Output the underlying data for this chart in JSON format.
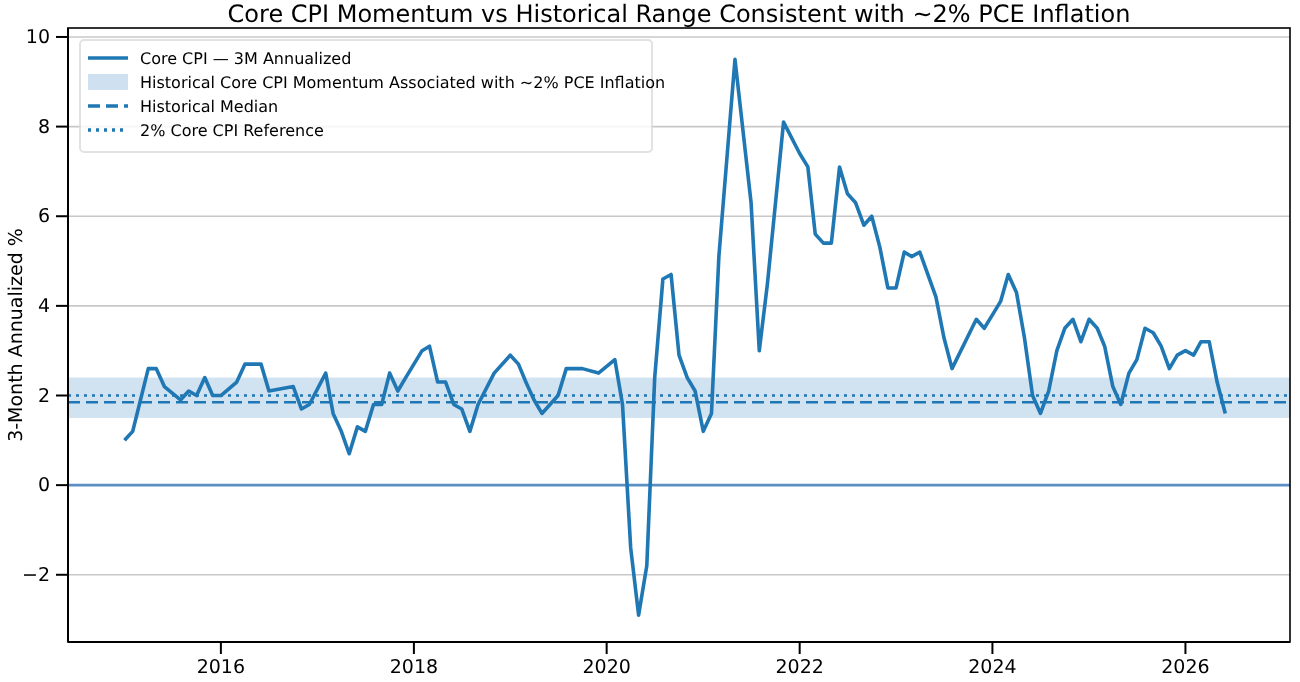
{
  "chart_data": {
    "type": "line",
    "title": "Core CPI Momentum vs Historical Range Consistent with ~2% PCE Inflation",
    "ylabel": "3-Month Annualized %",
    "x": [
      "2015-01",
      "2015-02",
      "2015-04",
      "2015-05",
      "2015-06",
      "2015-08",
      "2015-09",
      "2015-10",
      "2015-11",
      "2015-12",
      "2016-01",
      "2016-03",
      "2016-04",
      "2016-06",
      "2016-07",
      "2016-10",
      "2016-11",
      "2016-12",
      "2017-02",
      "2017-03",
      "2017-04",
      "2017-05",
      "2017-06",
      "2017-07",
      "2017-08",
      "2017-09",
      "2017-10",
      "2017-11",
      "2017-12",
      "2018-01",
      "2018-02",
      "2018-03",
      "2018-04",
      "2018-05",
      "2018-06",
      "2018-07",
      "2018-08",
      "2018-09",
      "2018-11",
      "2019-01",
      "2019-02",
      "2019-03",
      "2019-04",
      "2019-05",
      "2019-07",
      "2019-08",
      "2019-09",
      "2019-10",
      "2019-12",
      "2020-02",
      "2020-03",
      "2020-04",
      "2020-05",
      "2020-06",
      "2020-07",
      "2020-08",
      "2020-09",
      "2020-10",
      "2020-11",
      "2020-12",
      "2021-01",
      "2021-02",
      "2021-03",
      "2021-05",
      "2021-07",
      "2021-08",
      "2021-09",
      "2021-11",
      "2022-01",
      "2022-02",
      "2022-03",
      "2022-04",
      "2022-05",
      "2022-06",
      "2022-07",
      "2022-08",
      "2022-09",
      "2022-10",
      "2022-11",
      "2022-12",
      "2023-01",
      "2023-02",
      "2023-03",
      "2023-04",
      "2023-06",
      "2023-07",
      "2023-08",
      "2023-11",
      "2023-12",
      "2024-01",
      "2024-02",
      "2024-03",
      "2024-04",
      "2024-05",
      "2024-06",
      "2024-07",
      "2024-08",
      "2024-09",
      "2024-10",
      "2024-11",
      "2024-12",
      "2025-01",
      "2025-02",
      "2025-03",
      "2025-04",
      "2025-05",
      "2025-06",
      "2025-07",
      "2025-08",
      "2025-09",
      "2025-10",
      "2025-11",
      "2025-12",
      "2026-01",
      "2026-02",
      "2026-03",
      "2026-04",
      "2026-05",
      "2026-06"
    ],
    "series": [
      {
        "name": "Core CPI — 3M Annualized",
        "color": "#1f77b4",
        "values": [
          1.0,
          1.2,
          2.6,
          2.6,
          2.2,
          1.9,
          2.1,
          2.0,
          2.4,
          2.0,
          2.0,
          2.3,
          2.7,
          2.7,
          2.1,
          2.2,
          1.7,
          1.8,
          2.5,
          1.6,
          1.2,
          0.7,
          1.3,
          1.2,
          1.8,
          1.8,
          2.5,
          2.1,
          2.4,
          2.7,
          3.0,
          3.1,
          2.3,
          2.3,
          1.8,
          1.7,
          1.2,
          1.8,
          2.5,
          2.9,
          2.7,
          2.3,
          1.9,
          1.6,
          2.0,
          2.6,
          2.6,
          2.6,
          2.5,
          2.8,
          1.8,
          -1.4,
          -2.9,
          -1.8,
          2.4,
          4.6,
          4.7,
          2.9,
          2.4,
          2.1,
          1.2,
          1.6,
          5.1,
          9.5,
          6.3,
          3.0,
          4.5,
          8.1,
          7.4,
          7.1,
          5.6,
          5.4,
          5.4,
          7.1,
          6.5,
          6.3,
          5.8,
          6.0,
          5.3,
          4.4,
          4.4,
          5.2,
          5.1,
          5.2,
          4.2,
          3.3,
          2.6,
          3.7,
          3.5,
          3.8,
          4.1,
          4.7,
          4.3,
          3.3,
          2.0,
          1.6,
          2.1,
          3.0,
          3.5,
          3.7,
          3.2,
          3.7,
          3.5,
          3.1,
          2.2,
          1.8,
          2.5,
          2.8,
          3.5,
          3.4,
          3.1,
          2.6,
          2.9,
          3.0,
          2.9,
          3.2,
          3.2,
          2.3,
          1.6
        ]
      }
    ],
    "bands": [
      {
        "axis": "y",
        "from": 1.5,
        "to": 2.4,
        "label": "Historical Core CPI Momentum Associated with ~2% PCE Inflation",
        "color": "#cfe0f0"
      }
    ],
    "ref_lines": [
      {
        "axis": "y",
        "value": 0,
        "color": "#5b8fc4",
        "line_style": "solid"
      },
      {
        "axis": "y",
        "value": 1.85,
        "label": "Historical Median",
        "color": "#1f77b4",
        "line_style": "dashed"
      },
      {
        "axis": "y",
        "value": 2,
        "label": "2% Core CPI Reference",
        "color": "#1f77b4",
        "line_style": "dotted"
      }
    ],
    "xlim": [
      "2014-06",
      "2027-02"
    ],
    "xticks": [
      {
        "value": "2016",
        "label": "2016"
      },
      {
        "value": "2018",
        "label": "2018"
      },
      {
        "value": "2020",
        "label": "2020"
      },
      {
        "value": "2022",
        "label": "2022"
      },
      {
        "value": "2024",
        "label": "2024"
      },
      {
        "value": "2026",
        "label": "2026"
      }
    ],
    "ylim": [
      -3.5,
      10.2
    ],
    "yticks": [
      {
        "value": -2,
        "label": "−2"
      },
      0,
      2,
      4,
      6,
      8,
      10
    ],
    "grid": "y",
    "legend": "top left",
    "line_style": "solid",
    "marker": "none"
  }
}
